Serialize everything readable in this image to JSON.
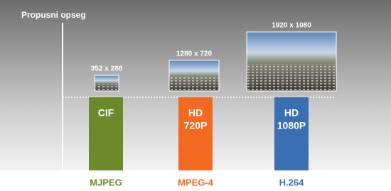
{
  "axis_label": "Propusni opseg",
  "columns": [
    {
      "codec": "MJPEG",
      "format": [
        "CIF"
      ],
      "resolution": "352 x 288"
    },
    {
      "codec": "MPEG-4",
      "format": [
        "HD",
        "720P"
      ],
      "resolution": "1280 x 720"
    },
    {
      "codec": "H.264",
      "format": [
        "HD",
        "1080P"
      ],
      "resolution": "1920 x 1080"
    }
  ]
}
